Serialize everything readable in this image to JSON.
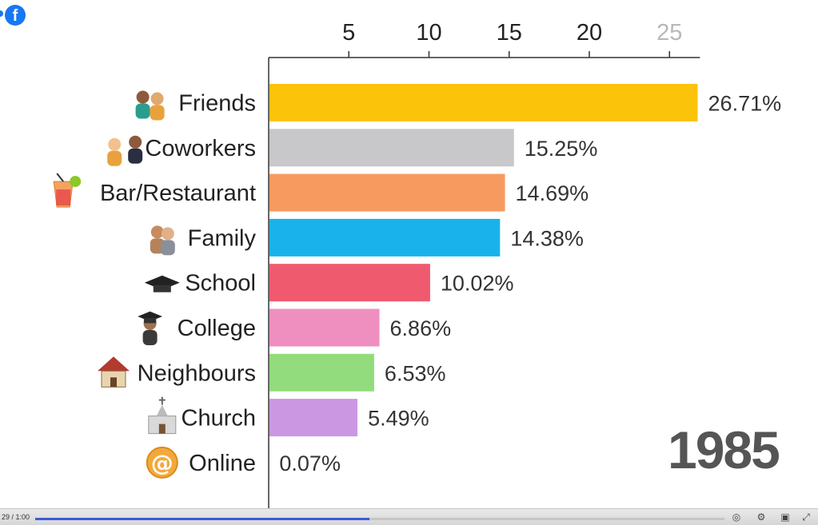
{
  "brand": {
    "logo_letter": "f",
    "color": "#1877f2"
  },
  "chart_data": {
    "type": "bar",
    "orientation": "horizontal",
    "x_ticks": [
      5,
      10,
      15,
      20,
      25
    ],
    "xlim": [
      0,
      26.9
    ],
    "categories": [
      "Friends",
      "Coworkers",
      "Bar/Restaurant",
      "Family",
      "School",
      "College",
      "Neighbours",
      "Church",
      "Online"
    ],
    "icons": [
      "friends-icon",
      "coworkers-icon",
      "bar-restaurant-icon",
      "family-icon",
      "school-icon",
      "college-icon",
      "neighbours-icon",
      "church-icon",
      "online-icon"
    ],
    "values": [
      26.71,
      15.25,
      14.69,
      14.38,
      10.02,
      6.86,
      6.53,
      5.49,
      0.07
    ],
    "value_labels": [
      "26.71%",
      "15.25%",
      "14.69%",
      "14.38%",
      "10.02%",
      "6.86%",
      "6.53%",
      "5.49%",
      "0.07%"
    ],
    "colors": [
      "#fcc30b",
      "#c8c8ca",
      "#f79a5f",
      "#19b2ea",
      "#ef5a6f",
      "#ee8fc0",
      "#92dc7d",
      "#cc97e2",
      "#f2f2f2"
    ],
    "year": "1985"
  },
  "player": {
    "time": "29 / 1:00",
    "progress": 0.485
  }
}
